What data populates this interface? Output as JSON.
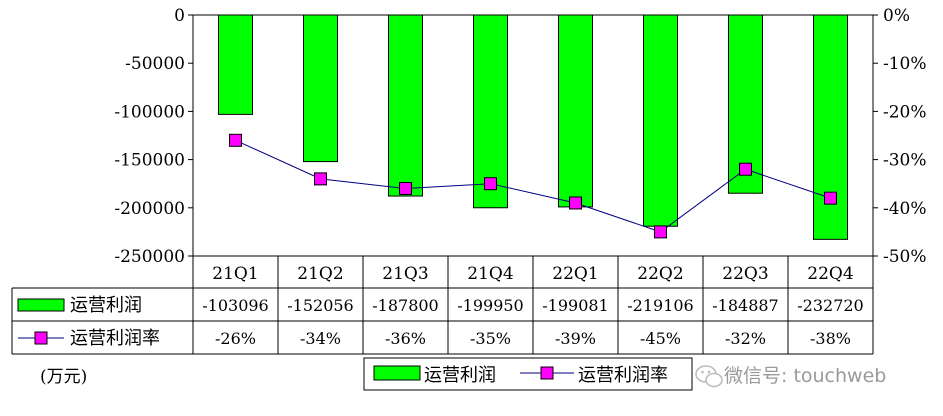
{
  "chart_data": {
    "type": "bar",
    "categories": [
      "21Q1",
      "21Q2",
      "21Q3",
      "21Q4",
      "22Q1",
      "22Q2",
      "22Q3",
      "22Q4"
    ],
    "series": [
      {
        "name": "运营利润",
        "type": "bar",
        "axis": "left",
        "color": "#00ff00",
        "values": [
          -103096,
          -152056,
          -187800,
          -199950,
          -199081,
          -219106,
          -184887,
          -232720
        ],
        "labels": [
          "-103096",
          "-152056",
          "-187800",
          "-199950",
          "-199081",
          "-219106",
          "-184887",
          "-232720"
        ]
      },
      {
        "name": "运营利润率",
        "type": "line",
        "axis": "right",
        "color": "#ff00ff",
        "values": [
          -26,
          -34,
          -36,
          -35,
          -39,
          -45,
          -32,
          -38
        ],
        "labels": [
          "-26%",
          "-34%",
          "-36%",
          "-35%",
          "-39%",
          "-45%",
          "-32%",
          "-38%"
        ]
      }
    ],
    "y_left": {
      "min": -250000,
      "max": 0,
      "ticks": [
        0,
        -50000,
        -100000,
        -150000,
        -200000,
        -250000
      ],
      "tick_labels": [
        "0",
        "-50000",
        "-100000",
        "-150000",
        "-200000",
        "-250000"
      ]
    },
    "y_right": {
      "min": -50,
      "max": 0,
      "ticks": [
        0,
        -10,
        -20,
        -30,
        -40,
        -50
      ],
      "tick_labels": [
        "0%",
        "-10%",
        "-20%",
        "-30%",
        "-40%",
        "-50%"
      ]
    },
    "unit_label": "(万元)",
    "grid": false,
    "legend": "bottom-center",
    "data_table": true
  },
  "watermark": "微信号: touchweb"
}
